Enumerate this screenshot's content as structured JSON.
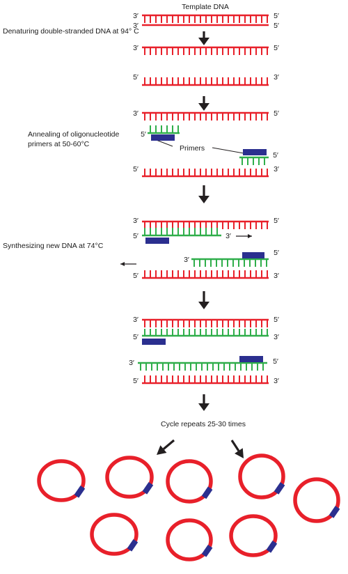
{
  "title": "Template DNA",
  "steps": [
    "Denaturing double-stranded DNA at 94° C",
    "Annealing of oligonucleotide",
    "primers at 50-60°C",
    "Synthesizing new DNA at 74°C"
  ],
  "primers_label": "Primers",
  "cycle_label": "Cycle repeats 25-30 times",
  "end_labels": {
    "three_prime": "3′",
    "five_prime": "5′"
  },
  "colors": {
    "template_strand": "#e8202a",
    "new_strand": "#2fae4a",
    "primer": "#2b2f8f",
    "arrow": "#231f20",
    "plasmid": "#e8202a"
  }
}
